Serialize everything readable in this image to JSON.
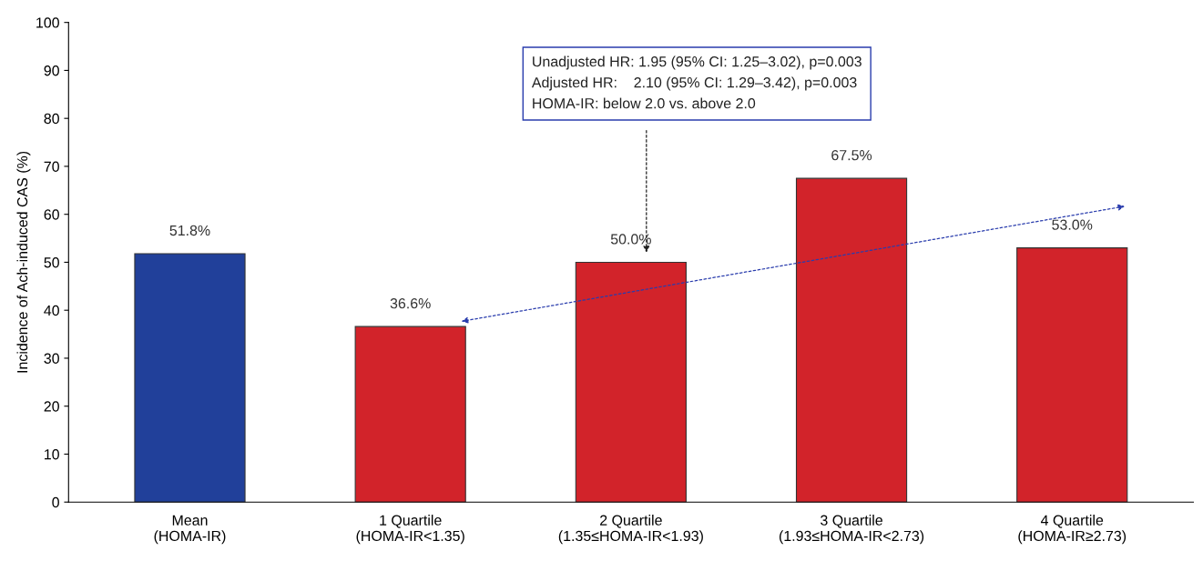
{
  "chart_data": {
    "type": "bar",
    "ylabel": "Incidence of Ach-induced CAS (%)",
    "categories": [
      "Mean\n(HOMA-IR)",
      "1 Quartile\n(HOMA-IR<1.35)",
      "2 Quartile\n(1.35≤HOMA-IR<1.93)",
      "3 Quartile\n(1.93≤HOMA-IR<2.73)",
      "4 Quartile\n(HOMA-IR≥2.73)"
    ],
    "values": [
      51.8,
      36.6,
      50.0,
      67.5,
      53.0
    ],
    "colors": [
      "#21409a",
      "#d2232a",
      "#d2232a",
      "#d2232a",
      "#d2232a"
    ],
    "value_labels": [
      "51.8%",
      "36.6%",
      "50.0%",
      "67.5%",
      "53.0%"
    ],
    "ylim": [
      0,
      100
    ],
    "yticks": [
      0,
      10,
      20,
      30,
      40,
      50,
      60,
      70,
      80,
      90,
      100
    ],
    "grid": false,
    "legend": false,
    "annotations": [
      "Unadjusted HR: 1.95 (95% CI: 1.25–3.02), p=0.003\nAdjusted HR:    2.10 (95% CI: 1.29–3.42), p=0.003\nHOMA-IR: below 2.0 vs. above 2.0"
    ]
  }
}
